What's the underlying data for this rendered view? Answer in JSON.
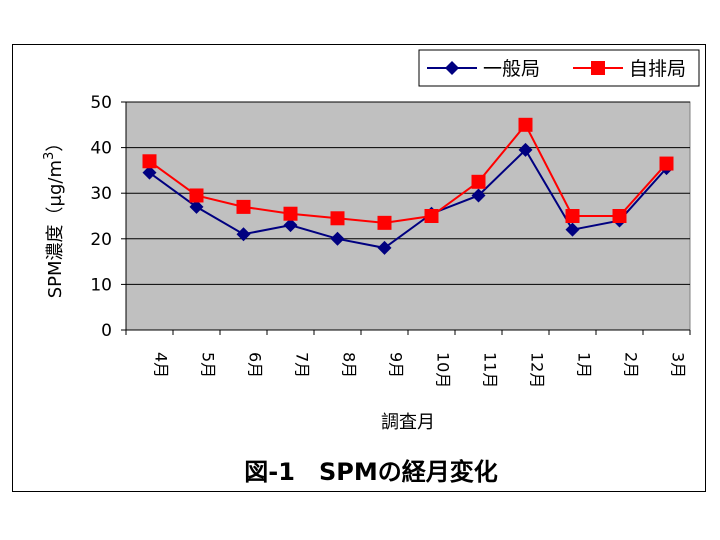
{
  "chart_data": {
    "type": "line",
    "title": "図-1　SPMの経月変化",
    "xlabel": "調査月",
    "ylabel": "SPM濃度（μg/m3）",
    "ylabel_parts": {
      "main": "SPM濃度（μg/m",
      "sup": "3",
      "close": "）"
    },
    "categories": [
      "4月",
      "5月",
      "6月",
      "7月",
      "8月",
      "9月",
      "10月",
      "11月",
      "12月",
      "1月",
      "2月",
      "3月"
    ],
    "ylim": [
      0,
      50
    ],
    "yticks": [
      0,
      10,
      20,
      30,
      40,
      50
    ],
    "grid": true,
    "legend_position": "top-right",
    "plot_background": "#C0C0C0",
    "series": [
      {
        "name": "一般局",
        "color": "#000080",
        "marker": "diamond",
        "values": [
          34.5,
          27,
          21,
          23,
          20,
          18,
          25.5,
          29.5,
          39.5,
          22,
          24,
          35.5
        ]
      },
      {
        "name": "自排局",
        "color": "#FF0000",
        "marker": "square",
        "values": [
          37,
          29.5,
          27,
          25.5,
          24.5,
          23.5,
          25,
          32.5,
          45,
          25,
          25,
          36.5
        ]
      }
    ]
  }
}
